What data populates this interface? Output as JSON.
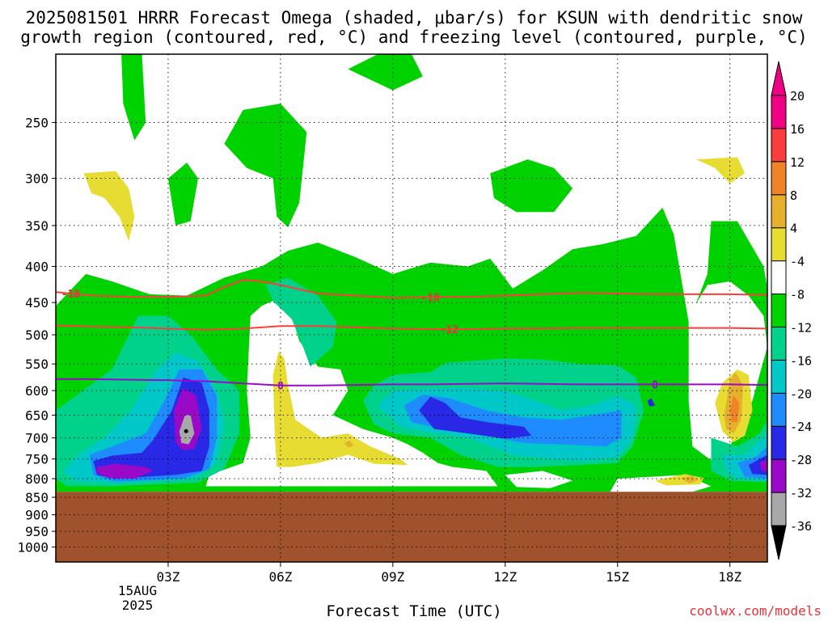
{
  "title_line1": "2025081501 HRRR Forecast Omega (shaded, μbar/s) for KSUN with dendritic snow",
  "title_line2": "growth region (contoured, red, °C) and freezing level (contoured, purple, °C)",
  "credit": "coolwx.com/models",
  "chart_data": {
    "type": "heatmap",
    "title": "2025081501 HRRR Forecast Omega (shaded, μbar/s) for KSUN with dendritic snow growth region (contoured, red, °C) and freezing level (contoured, purple, °C)",
    "xlabel": "Forecast Time (UTC)",
    "ylabel": "",
    "x_ticks": [
      "03Z",
      "06Z",
      "09Z",
      "12Z",
      "15Z",
      "18Z"
    ],
    "x_tick_hours": [
      3,
      6,
      9,
      12,
      15,
      18
    ],
    "x_date_lines": [
      "15AUG",
      "2025"
    ],
    "xlim_hours": [
      0,
      19
    ],
    "y_ticks": [
      250,
      300,
      350,
      400,
      450,
      500,
      550,
      600,
      650,
      700,
      750,
      800,
      850,
      900,
      950,
      1000
    ],
    "ylim_hPa": [
      200,
      1050
    ],
    "y_scale": "log-pressure",
    "grid": true,
    "terrain_below_hPa": 835,
    "colorbar_levels": [
      -36,
      -32,
      -28,
      -24,
      -20,
      -16,
      -12,
      -8,
      -4,
      4,
      8,
      12,
      16,
      20
    ],
    "colorbar_colors": [
      "#a8a8a8",
      "#9a09c8",
      "#2828e6",
      "#1e8cff",
      "#00c8c8",
      "#00d28c",
      "#00d200",
      "#ffffff",
      "#e6dc32",
      "#e6af2d",
      "#f08228",
      "#fa3c3c",
      "#f00082"
    ],
    "colors": {
      "white": "#ffffff",
      "green": "#00d200",
      "teal": "#00d28c",
      "cyan": "#00c8c8",
      "lightblue": "#1e8cff",
      "blue": "#2828e6",
      "purple": "#9a09c8",
      "gray": "#a8a8a8",
      "yellow": "#e6dc32",
      "gold": "#e6af2d",
      "orange": "#f08228",
      "red": "#fa3c3c",
      "terrain": "#a0522d",
      "contour_red": "#ff3c3c",
      "contour_purple": "#9a09c8",
      "contour_label_red": "#e8303a"
    },
    "contours": [
      {
        "name": "dgz -18",
        "label": "-18",
        "color": "#ff3c3c",
        "points": [
          [
            0,
            435
          ],
          [
            1,
            440
          ],
          [
            2,
            442
          ],
          [
            3,
            442
          ],
          [
            4,
            440
          ],
          [
            4.5,
            428
          ],
          [
            5,
            418
          ],
          [
            5.5,
            420
          ],
          [
            6,
            425
          ],
          [
            7,
            437
          ],
          [
            8,
            440
          ],
          [
            9,
            443
          ],
          [
            10,
            442
          ],
          [
            11,
            442
          ],
          [
            12,
            440
          ],
          [
            13,
            438
          ],
          [
            14,
            436
          ],
          [
            15,
            437
          ],
          [
            16,
            438
          ],
          [
            17,
            438
          ],
          [
            18,
            438
          ],
          [
            19,
            439
          ]
        ],
        "label_at_hour": [
          0.4,
          10.0
        ]
      },
      {
        "name": "dgz -12",
        "label": "-12",
        "color": "#ff3c3c",
        "points": [
          [
            0,
            485
          ],
          [
            1,
            487
          ],
          [
            2,
            488
          ],
          [
            3,
            490
          ],
          [
            4,
            492
          ],
          [
            5,
            490
          ],
          [
            6,
            486
          ],
          [
            7,
            486
          ],
          [
            8,
            488
          ],
          [
            9,
            490
          ],
          [
            10,
            491
          ],
          [
            11,
            491
          ],
          [
            12,
            490
          ],
          [
            13,
            490
          ],
          [
            14,
            489
          ],
          [
            15,
            489
          ],
          [
            16,
            489
          ],
          [
            17,
            489
          ],
          [
            18,
            489
          ],
          [
            19,
            490
          ]
        ],
        "label_at_hour": [
          10.5
        ]
      },
      {
        "name": "freezing level 0",
        "label": "0",
        "color": "#9a09c8",
        "points": [
          [
            0,
            578
          ],
          [
            1,
            578
          ],
          [
            2,
            579
          ],
          [
            3,
            580
          ],
          [
            4,
            582
          ],
          [
            5,
            586
          ],
          [
            6,
            590
          ],
          [
            7,
            590
          ],
          [
            8,
            589
          ],
          [
            9,
            588
          ],
          [
            10,
            588
          ],
          [
            11,
            587
          ],
          [
            12,
            586
          ],
          [
            13,
            587
          ],
          [
            14,
            588
          ],
          [
            15,
            588
          ],
          [
            16,
            588
          ],
          [
            17,
            588
          ],
          [
            18,
            588
          ],
          [
            19,
            589
          ]
        ],
        "label_at_hour": [
          6.0,
          16.0
        ]
      }
    ]
  }
}
